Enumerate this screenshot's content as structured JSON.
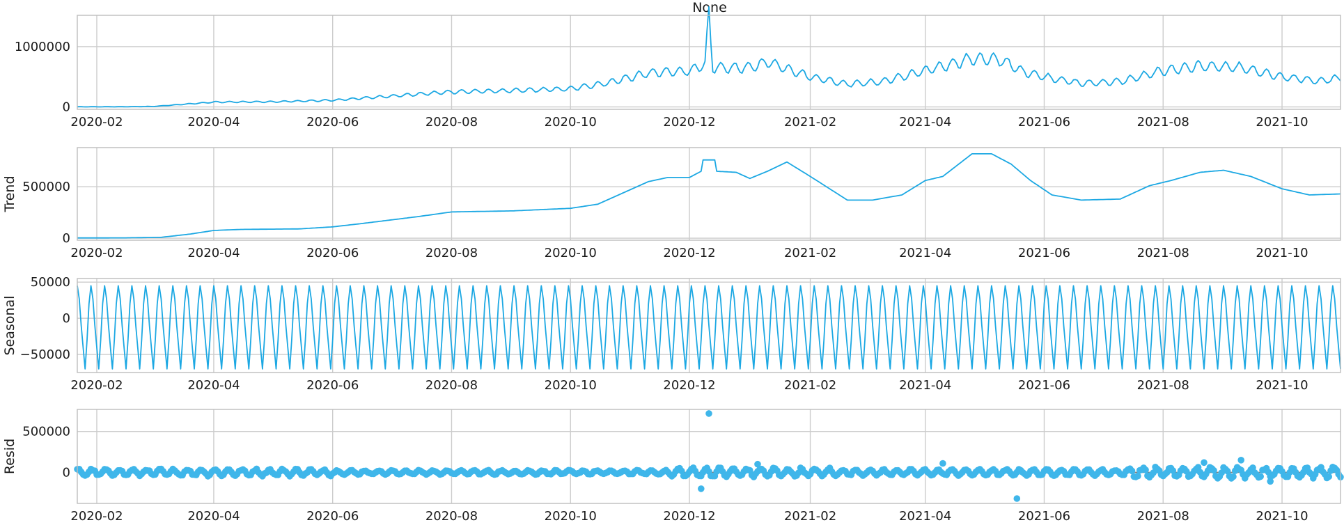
{
  "chart_data": {
    "type": "line",
    "title": "None",
    "x_range": [
      "2020-01-22",
      "2021-10-31"
    ],
    "x_ticks": [
      "2020-02-01",
      "2020-04-01",
      "2020-06-01",
      "2020-08-01",
      "2020-10-01",
      "2020-12-01",
      "2021-02-01",
      "2021-04-01",
      "2021-06-01",
      "2021-08-01",
      "2021-10-01"
    ],
    "x_tick_labels": [
      "2020-02",
      "2020-04",
      "2020-06",
      "2020-08",
      "2020-10",
      "2020-12",
      "2021-02",
      "2021-04",
      "2021-06",
      "2021-08",
      "2021-10"
    ],
    "grid": true,
    "colors": {
      "series": "#1ca8e3",
      "points": "#3fb6ea",
      "zero_line": "#7f7f7f"
    },
    "panels": [
      {
        "name": "observed",
        "ylabel": "",
        "ylim": [
          -40000,
          1520000
        ],
        "y_ticks": [
          0,
          1000000
        ],
        "y_tick_labels": [
          "0",
          "1000000"
        ],
        "type": "line",
        "anchors": [
          [
            "2020-01-22",
            2000
          ],
          [
            "2020-02-15",
            3000
          ],
          [
            "2020-03-01",
            8000
          ],
          [
            "2020-03-15",
            40000
          ],
          [
            "2020-04-01",
            80000
          ],
          [
            "2020-05-01",
            85000
          ],
          [
            "2020-06-01",
            110000
          ],
          [
            "2020-07-01",
            180000
          ],
          [
            "2020-08-01",
            250000
          ],
          [
            "2020-09-01",
            270000
          ],
          [
            "2020-10-01",
            300000
          ],
          [
            "2020-10-20",
            400000
          ],
          [
            "2020-11-10",
            560000
          ],
          [
            "2020-12-01",
            600000
          ],
          [
            "2020-12-09",
            700000
          ],
          [
            "2020-12-11",
            1500000
          ],
          [
            "2020-12-13",
            650000
          ],
          [
            "2021-01-01",
            650000
          ],
          [
            "2021-01-10",
            750000
          ],
          [
            "2021-02-01",
            500000
          ],
          [
            "2021-02-20",
            380000
          ],
          [
            "2021-03-10",
            420000
          ],
          [
            "2021-04-01",
            600000
          ],
          [
            "2021-04-25",
            800000
          ],
          [
            "2021-05-10",
            780000
          ],
          [
            "2021-05-20",
            600000
          ],
          [
            "2021-06-01",
            500000
          ],
          [
            "2021-06-20",
            390000
          ],
          [
            "2021-07-10",
            420000
          ],
          [
            "2021-08-01",
            600000
          ],
          [
            "2021-08-20",
            680000
          ],
          [
            "2021-09-10",
            650000
          ],
          [
            "2021-09-30",
            500000
          ],
          [
            "2021-10-20",
            430000
          ],
          [
            "2021-10-31",
            480000
          ]
        ]
      },
      {
        "name": "trend",
        "ylabel": "Trend",
        "ylim": [
          -20000,
          880000
        ],
        "y_ticks": [
          0,
          500000
        ],
        "y_tick_labels": [
          "0",
          "500000"
        ],
        "type": "line",
        "anchors": [
          [
            "2020-01-22",
            2000
          ],
          [
            "2020-02-15",
            3000
          ],
          [
            "2020-03-05",
            8000
          ],
          [
            "2020-03-20",
            40000
          ],
          [
            "2020-04-01",
            75000
          ],
          [
            "2020-04-15",
            85000
          ],
          [
            "2020-05-15",
            90000
          ],
          [
            "2020-06-01",
            110000
          ],
          [
            "2020-06-15",
            140000
          ],
          [
            "2020-07-15",
            210000
          ],
          [
            "2020-08-01",
            255000
          ],
          [
            "2020-09-01",
            265000
          ],
          [
            "2020-10-01",
            290000
          ],
          [
            "2020-10-15",
            330000
          ],
          [
            "2020-11-10",
            550000
          ],
          [
            "2020-11-20",
            590000
          ],
          [
            "2020-12-01",
            590000
          ],
          [
            "2020-12-07",
            650000
          ],
          [
            "2020-12-08",
            760000
          ],
          [
            "2020-12-14",
            760000
          ],
          [
            "2020-12-15",
            650000
          ],
          [
            "2020-12-25",
            640000
          ],
          [
            "2021-01-01",
            580000
          ],
          [
            "2021-01-10",
            650000
          ],
          [
            "2021-01-20",
            740000
          ],
          [
            "2021-02-01",
            600000
          ],
          [
            "2021-02-20",
            370000
          ],
          [
            "2021-03-05",
            370000
          ],
          [
            "2021-03-20",
            420000
          ],
          [
            "2021-04-01",
            560000
          ],
          [
            "2021-04-10",
            600000
          ],
          [
            "2021-04-25",
            820000
          ],
          [
            "2021-05-05",
            820000
          ],
          [
            "2021-05-15",
            720000
          ],
          [
            "2021-05-20",
            640000
          ],
          [
            "2021-05-25",
            560000
          ],
          [
            "2021-06-05",
            420000
          ],
          [
            "2021-06-20",
            370000
          ],
          [
            "2021-07-10",
            380000
          ],
          [
            "2021-07-25",
            510000
          ],
          [
            "2021-08-05",
            560000
          ],
          [
            "2021-08-20",
            640000
          ],
          [
            "2021-09-01",
            660000
          ],
          [
            "2021-09-15",
            600000
          ],
          [
            "2021-10-01",
            480000
          ],
          [
            "2021-10-15",
            420000
          ],
          [
            "2021-10-31",
            430000
          ]
        ]
      },
      {
        "name": "seasonal",
        "ylabel": "Seasonal",
        "ylim": [
          -75000,
          55000
        ],
        "y_ticks": [
          -50000,
          0,
          50000
        ],
        "y_tick_labels": [
          "−50000",
          "0",
          "50000"
        ],
        "type": "line",
        "period_days": 7,
        "amplitude_max": 45000,
        "amplitude_min": -70000
      },
      {
        "name": "resid",
        "ylabel": "Resid",
        "ylim": [
          -380000,
          770000
        ],
        "y_ticks": [
          0,
          500000
        ],
        "y_tick_labels": [
          "0",
          "500000"
        ],
        "type": "scatter",
        "outliers": [
          [
            "2020-12-11",
            720000
          ],
          [
            "2021-05-18",
            -320000
          ],
          [
            "2020-12-07",
            -200000
          ],
          [
            "2021-08-22",
            120000
          ],
          [
            "2021-09-10",
            150000
          ],
          [
            "2021-09-25",
            -110000
          ],
          [
            "2021-01-05",
            100000
          ],
          [
            "2021-04-10",
            110000
          ]
        ]
      }
    ]
  }
}
